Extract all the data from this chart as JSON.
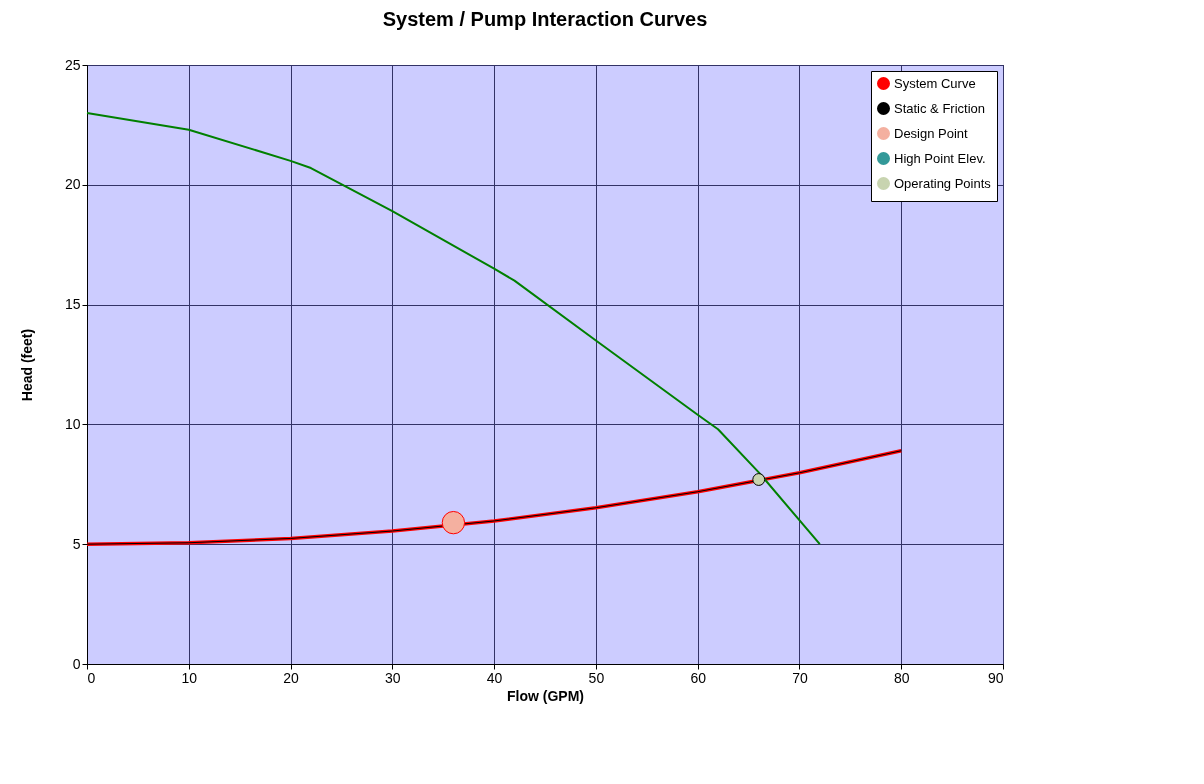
{
  "chart_data": {
    "type": "line",
    "title": "System / Pump Interaction Curves",
    "xlabel": "Flow (GPM)",
    "ylabel": "Head (feet)",
    "xlim": [
      0,
      90
    ],
    "xticks": [
      0,
      10,
      20,
      30,
      40,
      50,
      60,
      70,
      80,
      90
    ],
    "ylim": [
      0,
      25
    ],
    "yticks": [
      0,
      5,
      10,
      15,
      20,
      25
    ],
    "grid": true,
    "legend": "top right",
    "series": [
      {
        "name": "System Curve",
        "color": "#ff0000",
        "x": [
          0,
          10,
          20,
          30,
          40,
          50,
          60,
          70,
          80
        ],
        "values": [
          5,
          5.06,
          5.24,
          5.55,
          5.97,
          6.52,
          7.19,
          7.98,
          8.9
        ]
      },
      {
        "name": "Static & Friction",
        "color": "#000000",
        "x": [
          0,
          10,
          20,
          30,
          40,
          50,
          60,
          70,
          80
        ],
        "values": [
          5,
          5.06,
          5.24,
          5.55,
          5.97,
          6.52,
          7.19,
          7.98,
          8.9
        ]
      },
      {
        "type": "scatter",
        "name": "Design Point",
        "color": "#f4b0a0",
        "x": [
          36
        ],
        "values": [
          5.9
        ]
      },
      {
        "name": "High Point Elev.",
        "color": "#339999"
      },
      {
        "color": "#008000",
        "x": [
          0,
          10,
          20,
          22,
          30,
          40,
          42,
          50,
          60,
          62,
          66,
          72
        ],
        "values": [
          23,
          22.3,
          21,
          20.7,
          18.9,
          16.5,
          16,
          13.5,
          10.4,
          9.8,
          8,
          5
        ]
      },
      {
        "type": "scatter",
        "name": "Operating Points",
        "color": "#c8d4b0",
        "x": [
          66
        ],
        "values": [
          7.7
        ]
      }
    ]
  }
}
